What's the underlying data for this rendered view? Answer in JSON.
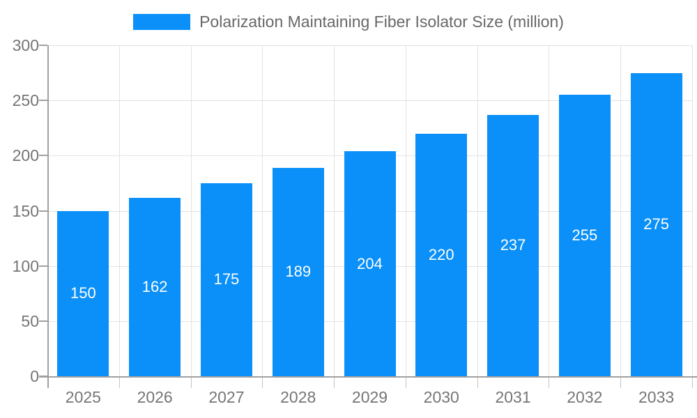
{
  "legend": {
    "label": "Polarization Maintaining Fiber Isolator Size (million)"
  },
  "chart_data": {
    "type": "bar",
    "title": "",
    "categories": [
      "2025",
      "2026",
      "2027",
      "2028",
      "2029",
      "2030",
      "2031",
      "2032",
      "2033"
    ],
    "series": [
      {
        "name": "Polarization Maintaining Fiber Isolator Size (million)",
        "values": [
          150,
          162,
          175,
          189,
          204,
          220,
          237,
          255,
          275
        ]
      }
    ],
    "xlabel": "",
    "ylabel": "",
    "ylim": [
      0,
      300
    ],
    "yticks": [
      0,
      50,
      100,
      150,
      200,
      250,
      300
    ],
    "grid": true,
    "legend_position": "top-center",
    "value_label_position": "inside-center",
    "colors": {
      "bar": "#0a90f8",
      "value_label": "#ffffff",
      "axis_line": "#a0a0a0",
      "grid_line": "#e2e2e2",
      "tick_mark": "#c4c4c4",
      "tick_label": "#757575",
      "legend_text": "#686868",
      "background": "#ffffff"
    }
  }
}
